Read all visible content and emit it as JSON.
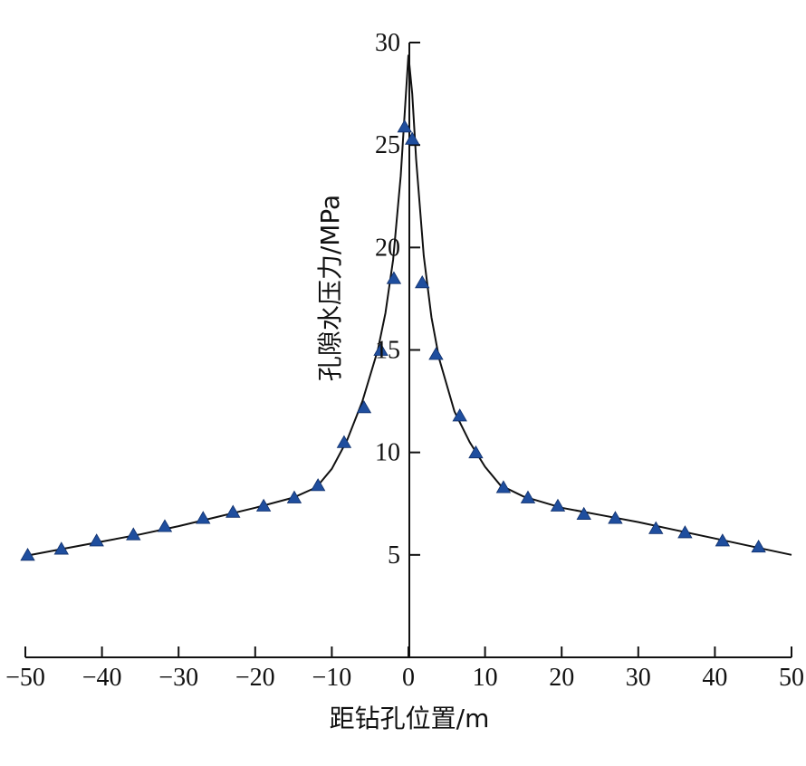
{
  "chart_data": {
    "type": "line",
    "xlabel": "距钻孔位置/m",
    "ylabel": "孔隙水压力/MPa",
    "xlim": [
      -50,
      50
    ],
    "ylim": [
      0,
      30
    ],
    "x_ticks": [
      "−50",
      "−40",
      "−30",
      "−20",
      "−10",
      "0",
      "10",
      "20",
      "30",
      "40",
      "50"
    ],
    "y_ticks": [
      "5",
      "10",
      "15",
      "20",
      "25",
      "30"
    ],
    "grid": false,
    "colors": {
      "line": "#111111",
      "marker": "#1f4e9e"
    },
    "series": [
      {
        "marker": "triangle",
        "x": [
          -49.7,
          -45.3,
          -40.7,
          -35.9,
          -31.8,
          -26.8,
          -22.9,
          -18.9,
          -14.9,
          -11.8,
          -8.4,
          -5.8,
          -3.6,
          -1.9,
          -0.5,
          0.5,
          1.8,
          3.6,
          6.7,
          8.8,
          12.4,
          15.6,
          19.5,
          22.9,
          27.0,
          32.3,
          36.1,
          41.0,
          45.7
        ],
        "y": [
          5.0,
          5.3,
          5.7,
          6.0,
          6.4,
          6.8,
          7.1,
          7.4,
          7.8,
          8.4,
          10.5,
          12.2,
          15.0,
          18.5,
          25.9,
          25.3,
          18.3,
          14.8,
          11.8,
          10.0,
          8.3,
          7.8,
          7.4,
          7.0,
          6.8,
          6.3,
          6.1,
          5.7,
          5.4
        ]
      }
    ],
    "curve": {
      "x": [
        -50,
        -45,
        -40,
        -35,
        -30,
        -25,
        -20,
        -15,
        -12,
        -10,
        -8,
        -6,
        -4,
        -3,
        -2,
        -1,
        -0.5,
        0,
        0.5,
        1,
        2,
        3,
        4,
        6,
        8,
        10,
        12,
        15,
        20,
        25,
        30,
        35,
        40,
        45,
        50
      ],
      "y": [
        4.95,
        5.3,
        5.65,
        6.0,
        6.4,
        6.85,
        7.3,
        7.8,
        8.3,
        9.2,
        10.6,
        12.5,
        15.0,
        16.8,
        19.4,
        23.5,
        26.5,
        29.4,
        27.5,
        24.3,
        19.6,
        16.6,
        14.6,
        12.0,
        10.5,
        9.3,
        8.4,
        7.85,
        7.3,
        6.95,
        6.6,
        6.2,
        5.8,
        5.4,
        5.0
      ]
    }
  }
}
